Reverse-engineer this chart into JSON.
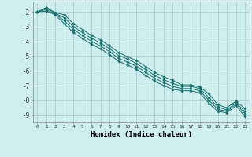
{
  "xlabel": "Humidex (Indice chaleur)",
  "background_color": "#ceeeed",
  "grid_color": "#aacfcf",
  "line_color": "#1a7070",
  "xlim": [
    -0.5,
    23.5
  ],
  "ylim": [
    -9.5,
    -1.3
  ],
  "yticks": [
    -9,
    -8,
    -7,
    -6,
    -5,
    -4,
    -3,
    -2
  ],
  "xticks": [
    0,
    1,
    2,
    3,
    4,
    5,
    6,
    7,
    8,
    9,
    10,
    11,
    12,
    13,
    14,
    15,
    16,
    17,
    18,
    19,
    20,
    21,
    22,
    23
  ],
  "series": [
    {
      "x": [
        0,
        1,
        2,
        3,
        4,
        5,
        6,
        7,
        8,
        9,
        10,
        11,
        12,
        13,
        14,
        15,
        16,
        17,
        18,
        19,
        20,
        21,
        22,
        23
      ],
      "y": [
        -2.0,
        -1.7,
        -2.05,
        -2.2,
        -2.8,
        -3.2,
        -3.6,
        -3.9,
        -4.3,
        -4.75,
        -5.05,
        -5.3,
        -5.7,
        -6.1,
        -6.4,
        -6.65,
        -6.95,
        -6.95,
        -7.1,
        -7.55,
        -8.3,
        -8.5,
        -8.05,
        -8.55
      ]
    },
    {
      "x": [
        0,
        1,
        2,
        3,
        4,
        5,
        6,
        7,
        8,
        9,
        10,
        11,
        12,
        13,
        14,
        15,
        16,
        17,
        18,
        19,
        20,
        21,
        22,
        23
      ],
      "y": [
        -2.0,
        -1.75,
        -2.1,
        -2.4,
        -3.0,
        -3.4,
        -3.8,
        -4.1,
        -4.5,
        -4.95,
        -5.2,
        -5.5,
        -5.9,
        -6.3,
        -6.6,
        -6.85,
        -7.05,
        -7.05,
        -7.2,
        -7.8,
        -8.45,
        -8.65,
        -8.15,
        -8.75
      ]
    },
    {
      "x": [
        0,
        1,
        2,
        3,
        4,
        5,
        6,
        7,
        8,
        9,
        10,
        11,
        12,
        13,
        14,
        15,
        16,
        17,
        18,
        19,
        20,
        21,
        22,
        23
      ],
      "y": [
        -2.0,
        -1.85,
        -2.15,
        -2.6,
        -3.2,
        -3.6,
        -4.0,
        -4.3,
        -4.7,
        -5.15,
        -5.4,
        -5.7,
        -6.1,
        -6.5,
        -6.8,
        -7.05,
        -7.2,
        -7.2,
        -7.35,
        -8.0,
        -8.6,
        -8.75,
        -8.25,
        -8.9
      ]
    },
    {
      "x": [
        0,
        1,
        2,
        3,
        4,
        5,
        6,
        7,
        8,
        9,
        10,
        11,
        12,
        13,
        14,
        15,
        16,
        17,
        18,
        19,
        20,
        21,
        22,
        23
      ],
      "y": [
        -2.0,
        -1.95,
        -2.2,
        -2.8,
        -3.4,
        -3.8,
        -4.2,
        -4.5,
        -4.9,
        -5.35,
        -5.6,
        -5.9,
        -6.3,
        -6.7,
        -7.0,
        -7.25,
        -7.35,
        -7.35,
        -7.5,
        -8.2,
        -8.75,
        -8.85,
        -8.35,
        -9.1
      ]
    }
  ]
}
